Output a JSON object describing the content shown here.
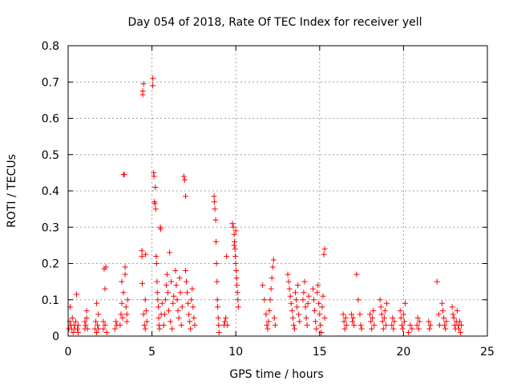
{
  "chart_data": {
    "type": "scatter",
    "title": "Day 054 of 2018, Rate Of TEC Index for receiver yell",
    "xlabel": "GPS time / hours",
    "ylabel": "ROTI / TECUs",
    "xlim": [
      0,
      25
    ],
    "ylim": [
      0,
      0.8
    ],
    "xticks": [
      0,
      5,
      10,
      15,
      20,
      25
    ],
    "xtick_labels": [
      "0",
      "5",
      "10",
      "15",
      "20",
      "25"
    ],
    "yticks": [
      0,
      0.1,
      0.2,
      0.3,
      0.4,
      0.5,
      0.6,
      0.7,
      0.8
    ],
    "ytick_labels": [
      "0",
      "0.1",
      "0.2",
      "0.3",
      "0.4",
      "0.5",
      "0.6",
      "0.7",
      "0.8"
    ],
    "grid": true,
    "marker": "+",
    "color": "#ff0000",
    "series": [
      {
        "name": "ROTI",
        "points": [
          [
            0.05,
            0.02
          ],
          [
            0.1,
            0.04
          ],
          [
            0.12,
            0.08
          ],
          [
            0.15,
            0.03
          ],
          [
            0.2,
            0.02
          ],
          [
            0.25,
            0.05
          ],
          [
            0.3,
            0.01
          ],
          [
            0.35,
            0.03
          ],
          [
            0.4,
            0.02
          ],
          [
            0.45,
            0.04
          ],
          [
            0.5,
            0.115
          ],
          [
            0.55,
            0.02
          ],
          [
            0.6,
            0.01
          ],
          [
            0.6,
            0.03
          ],
          [
            1.0,
            0.02
          ],
          [
            1.0,
            0.04
          ],
          [
            1.05,
            0.03
          ],
          [
            1.1,
            0.05
          ],
          [
            1.1,
            0.07
          ],
          [
            1.15,
            0.02
          ],
          [
            1.6,
            0.02
          ],
          [
            1.65,
            0.04
          ],
          [
            1.7,
            0.01
          ],
          [
            1.7,
            0.09
          ],
          [
            1.75,
            0.03
          ],
          [
            1.8,
            0.06
          ],
          [
            1.8,
            0.02
          ],
          [
            2.1,
            0.02
          ],
          [
            2.1,
            0.04
          ],
          [
            2.15,
            0.185
          ],
          [
            2.2,
            0.13
          ],
          [
            2.2,
            0.03
          ],
          [
            2.25,
            0.19
          ],
          [
            2.3,
            0.01
          ],
          [
            2.8,
            0.02
          ],
          [
            2.85,
            0.04
          ],
          [
            2.9,
            0.03
          ],
          [
            3.1,
            0.03
          ],
          [
            3.15,
            0.06
          ],
          [
            3.2,
            0.09
          ],
          [
            3.2,
            0.15
          ],
          [
            3.25,
            0.05
          ],
          [
            3.3,
            0.12
          ],
          [
            3.3,
            0.445
          ],
          [
            3.35,
            0.445
          ],
          [
            3.4,
            0.19
          ],
          [
            3.4,
            0.17
          ],
          [
            3.45,
            0.08
          ],
          [
            3.5,
            0.06
          ],
          [
            3.5,
            0.04
          ],
          [
            3.55,
            0.1
          ],
          [
            4.4,
            0.22
          ],
          [
            4.4,
            0.235
          ],
          [
            4.42,
            0.145
          ],
          [
            4.45,
            0.665
          ],
          [
            4.45,
            0.675
          ],
          [
            4.5,
            0.695
          ],
          [
            4.5,
            0.06
          ],
          [
            4.55,
            0.03
          ],
          [
            4.6,
            0.02
          ],
          [
            4.6,
            0.1
          ],
          [
            4.62,
            0.225
          ],
          [
            4.65,
            0.07
          ],
          [
            4.7,
            0.04
          ],
          [
            5.05,
            0.71
          ],
          [
            5.05,
            0.69
          ],
          [
            5.1,
            0.45
          ],
          [
            5.12,
            0.44
          ],
          [
            5.15,
            0.37
          ],
          [
            5.18,
            0.365
          ],
          [
            5.2,
            0.41
          ],
          [
            5.22,
            0.35
          ],
          [
            5.25,
            0.22
          ],
          [
            5.28,
            0.2
          ],
          [
            5.3,
            0.15
          ],
          [
            5.32,
            0.12
          ],
          [
            5.35,
            0.1
          ],
          [
            5.38,
            0.08
          ],
          [
            5.4,
            0.05
          ],
          [
            5.42,
            0.03
          ],
          [
            5.45,
            0.02
          ],
          [
            5.5,
            0.3
          ],
          [
            5.52,
            0.295
          ],
          [
            5.55,
            0.06
          ],
          [
            5.6,
            0.09
          ],
          [
            5.7,
            0.03
          ],
          [
            5.75,
            0.06
          ],
          [
            5.8,
            0.1
          ],
          [
            5.85,
            0.14
          ],
          [
            5.9,
            0.17
          ],
          [
            5.95,
            0.12
          ],
          [
            6.0,
            0.07
          ],
          [
            6.05,
            0.23
          ],
          [
            6.1,
            0.04
          ],
          [
            6.15,
            0.15
          ],
          [
            6.2,
            0.02
          ],
          [
            6.25,
            0.09
          ],
          [
            6.3,
            0.11
          ],
          [
            6.4,
            0.18
          ],
          [
            6.45,
            0.14
          ],
          [
            6.5,
            0.1
          ],
          [
            6.55,
            0.07
          ],
          [
            6.6,
            0.05
          ],
          [
            6.65,
            0.16
          ],
          [
            6.7,
            0.12
          ],
          [
            6.75,
            0.03
          ],
          [
            6.8,
            0.08
          ],
          [
            6.9,
            0.44
          ],
          [
            6.95,
            0.43
          ],
          [
            7.0,
            0.385
          ],
          [
            7.0,
            0.18
          ],
          [
            7.05,
            0.15
          ],
          [
            7.1,
            0.12
          ],
          [
            7.15,
            0.09
          ],
          [
            7.2,
            0.06
          ],
          [
            7.25,
            0.04
          ],
          [
            7.3,
            0.02
          ],
          [
            7.35,
            0.1
          ],
          [
            7.4,
            0.13
          ],
          [
            7.45,
            0.08
          ],
          [
            7.5,
            0.05
          ],
          [
            7.55,
            0.03
          ],
          [
            8.7,
            0.385
          ],
          [
            8.72,
            0.37
          ],
          [
            8.75,
            0.35
          ],
          [
            8.8,
            0.32
          ],
          [
            8.82,
            0.26
          ],
          [
            8.85,
            0.2
          ],
          [
            8.88,
            0.15
          ],
          [
            8.9,
            0.1
          ],
          [
            8.92,
            0.08
          ],
          [
            8.95,
            0.05
          ],
          [
            8.97,
            0.03
          ],
          [
            9.0,
            0.01
          ],
          [
            9.3,
            0.03
          ],
          [
            9.35,
            0.04
          ],
          [
            9.4,
            0.05
          ],
          [
            9.45,
            0.22
          ],
          [
            9.5,
            0.03
          ],
          [
            9.8,
            0.31
          ],
          [
            9.85,
            0.3
          ],
          [
            9.9,
            0.28
          ],
          [
            9.92,
            0.26
          ],
          [
            9.95,
            0.24
          ],
          [
            9.97,
            0.22
          ],
          [
            10.0,
            0.2
          ],
          [
            10.02,
            0.18
          ],
          [
            10.05,
            0.16
          ],
          [
            10.07,
            0.14
          ],
          [
            10.1,
            0.12
          ],
          [
            10.12,
            0.1
          ],
          [
            10.15,
            0.08
          ],
          [
            10.0,
            0.29
          ],
          [
            9.9,
            0.25
          ],
          [
            11.6,
            0.14
          ],
          [
            11.7,
            0.1
          ],
          [
            11.8,
            0.06
          ],
          [
            11.85,
            0.03
          ],
          [
            11.9,
            0.02
          ],
          [
            11.95,
            0.04
          ],
          [
            12.0,
            0.07
          ],
          [
            12.05,
            0.1
          ],
          [
            12.1,
            0.13
          ],
          [
            12.15,
            0.16
          ],
          [
            12.2,
            0.19
          ],
          [
            12.25,
            0.21
          ],
          [
            12.3,
            0.05
          ],
          [
            12.35,
            0.03
          ],
          [
            13.1,
            0.17
          ],
          [
            13.15,
            0.15
          ],
          [
            13.2,
            0.13
          ],
          [
            13.25,
            0.11
          ],
          [
            13.3,
            0.09
          ],
          [
            13.35,
            0.07
          ],
          [
            13.4,
            0.05
          ],
          [
            13.45,
            0.03
          ],
          [
            13.5,
            0.02
          ],
          [
            13.55,
            0.12
          ],
          [
            13.6,
            0.1
          ],
          [
            13.65,
            0.08
          ],
          [
            13.7,
            0.14
          ],
          [
            13.75,
            0.06
          ],
          [
            13.8,
            0.04
          ],
          [
            14.0,
            0.1
          ],
          [
            14.05,
            0.12
          ],
          [
            14.1,
            0.15
          ],
          [
            14.15,
            0.08
          ],
          [
            14.2,
            0.05
          ],
          [
            14.25,
            0.03
          ],
          [
            14.3,
            0.09
          ],
          [
            14.35,
            0.11
          ],
          [
            14.6,
            0.13
          ],
          [
            14.65,
            0.1
          ],
          [
            14.7,
            0.07
          ],
          [
            14.75,
            0.04
          ],
          [
            14.8,
            0.02
          ],
          [
            14.85,
            0.12
          ],
          [
            14.9,
            0.14
          ],
          [
            14.95,
            0.09
          ],
          [
            15.0,
            0.06
          ],
          [
            15.05,
            0.03
          ],
          [
            15.1,
            0.01
          ],
          [
            15.15,
            0.08
          ],
          [
            15.2,
            0.11
          ],
          [
            15.25,
            0.225
          ],
          [
            15.3,
            0.24
          ],
          [
            15.3,
            0.05
          ],
          [
            16.4,
            0.06
          ],
          [
            16.45,
            0.04
          ],
          [
            16.5,
            0.02
          ],
          [
            16.55,
            0.05
          ],
          [
            16.6,
            0.03
          ],
          [
            16.9,
            0.06
          ],
          [
            16.95,
            0.04
          ],
          [
            17.0,
            0.05
          ],
          [
            17.05,
            0.03
          ],
          [
            17.2,
            0.17
          ],
          [
            17.3,
            0.1
          ],
          [
            17.4,
            0.06
          ],
          [
            17.45,
            0.03
          ],
          [
            17.5,
            0.02
          ],
          [
            18.0,
            0.06
          ],
          [
            18.05,
            0.04
          ],
          [
            18.1,
            0.02
          ],
          [
            18.15,
            0.05
          ],
          [
            18.2,
            0.07
          ],
          [
            18.25,
            0.03
          ],
          [
            18.6,
            0.1
          ],
          [
            18.65,
            0.08
          ],
          [
            18.7,
            0.06
          ],
          [
            18.75,
            0.04
          ],
          [
            18.8,
            0.02
          ],
          [
            18.85,
            0.05
          ],
          [
            18.9,
            0.07
          ],
          [
            18.95,
            0.03
          ],
          [
            19.0,
            0.09
          ],
          [
            19.3,
            0.03
          ],
          [
            19.35,
            0.05
          ],
          [
            19.4,
            0.02
          ],
          [
            19.45,
            0.04
          ],
          [
            19.8,
            0.07
          ],
          [
            19.85,
            0.05
          ],
          [
            19.9,
            0.03
          ],
          [
            19.95,
            0.02
          ],
          [
            20.0,
            0.06
          ],
          [
            20.05,
            0.04
          ],
          [
            20.1,
            0.09
          ],
          [
            20.3,
            0.01
          ],
          [
            20.4,
            0.03
          ],
          [
            20.5,
            0.02
          ],
          [
            20.8,
            0.03
          ],
          [
            20.85,
            0.05
          ],
          [
            20.9,
            0.02
          ],
          [
            20.95,
            0.04
          ],
          [
            21.5,
            0.04
          ],
          [
            21.55,
            0.02
          ],
          [
            21.6,
            0.03
          ],
          [
            22.0,
            0.15
          ],
          [
            22.1,
            0.06
          ],
          [
            22.15,
            0.03
          ],
          [
            22.3,
            0.09
          ],
          [
            22.35,
            0.07
          ],
          [
            22.4,
            0.05
          ],
          [
            22.45,
            0.03
          ],
          [
            22.5,
            0.02
          ],
          [
            22.55,
            0.04
          ],
          [
            22.9,
            0.08
          ],
          [
            22.95,
            0.06
          ],
          [
            23.0,
            0.05
          ],
          [
            23.05,
            0.03
          ],
          [
            23.1,
            0.02
          ],
          [
            23.15,
            0.04
          ],
          [
            23.2,
            0.07
          ],
          [
            23.25,
            0.03
          ],
          [
            23.3,
            0.02
          ],
          [
            23.35,
            0.04
          ],
          [
            23.4,
            0.01
          ],
          [
            23.45,
            0.03
          ]
        ]
      }
    ]
  }
}
